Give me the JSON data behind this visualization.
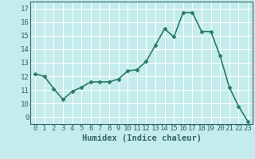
{
  "xlabel": "Humidex (Indice chaleur)",
  "x": [
    0,
    1,
    2,
    3,
    4,
    5,
    6,
    7,
    8,
    9,
    10,
    11,
    12,
    13,
    14,
    15,
    16,
    17,
    18,
    19,
    20,
    21,
    22,
    23
  ],
  "y": [
    12.2,
    12.0,
    11.1,
    10.3,
    10.9,
    11.2,
    11.6,
    11.6,
    11.6,
    11.8,
    12.4,
    12.5,
    13.1,
    14.3,
    15.5,
    14.9,
    16.7,
    16.7,
    15.3,
    15.3,
    13.5,
    11.2,
    9.8,
    8.7
  ],
  "line_color": "#2a7a6a",
  "marker": "D",
  "marker_size": 2.5,
  "line_width": 1.2,
  "bg_color": "#c5ecec",
  "grid_color": "#aee0e0",
  "xlim": [
    -0.5,
    23.5
  ],
  "ylim": [
    8.5,
    17.5
  ],
  "yticks": [
    9,
    10,
    11,
    12,
    13,
    14,
    15,
    16,
    17
  ],
  "xticks": [
    0,
    1,
    2,
    3,
    4,
    5,
    6,
    7,
    8,
    9,
    10,
    11,
    12,
    13,
    14,
    15,
    16,
    17,
    18,
    19,
    20,
    21,
    22,
    23
  ],
  "tick_label_fontsize": 6.5,
  "xlabel_fontsize": 7.5,
  "axis_color": "#336666"
}
